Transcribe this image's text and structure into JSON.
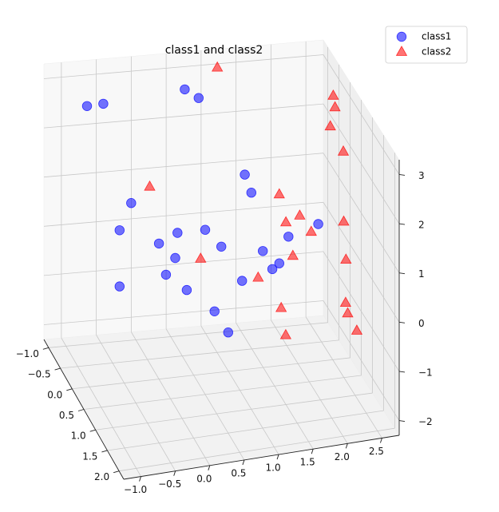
{
  "chart_data": {
    "type": "scatter",
    "projection": "3d",
    "title": "class1 and class2",
    "xlabel": "",
    "ylabel": "",
    "zlabel": "",
    "xlim": [
      -1.25,
      2.75
    ],
    "ylim": [
      -1.2,
      2.2
    ],
    "zlim": [
      -2.3,
      3.3
    ],
    "x_ticks": [
      "−1.0",
      "−0.5",
      "0.0",
      "0.5",
      "1.0",
      "1.5",
      "2.0",
      "2.5"
    ],
    "y_ticks": [
      "−1.0",
      "−0.5",
      "0.0",
      "0.5",
      "1.0",
      "1.5",
      "2.0"
    ],
    "z_ticks": [
      "−2",
      "−1",
      "0",
      "1",
      "2",
      "3"
    ],
    "grid": true,
    "legend_position": "top-right",
    "series": [
      {
        "name": "class1",
        "marker": "circle",
        "color": "#0000ff",
        "points": [
          [
            0.9,
            -1.0,
            2.5
          ],
          [
            0.7,
            -1.0,
            2.7
          ],
          [
            -0.6,
            -0.6,
            2.9
          ],
          [
            -0.8,
            -0.7,
            2.8
          ],
          [
            -0.6,
            0.1,
            0.9
          ],
          [
            0.2,
            0.2,
            0.8
          ],
          [
            -0.4,
            1.5,
            1.1
          ],
          [
            1.0,
            1.0,
            2.1
          ],
          [
            -0.5,
            0.3,
            1.6
          ],
          [
            0.4,
            1.8,
            0.0
          ],
          [
            0.8,
            1.2,
            0.5
          ],
          [
            0.1,
            -0.3,
            0.2
          ],
          [
            -0.3,
            1.6,
            1.5
          ],
          [
            -0.5,
            -0.2,
            -0.5
          ],
          [
            0.3,
            0.3,
            -0.3
          ],
          [
            1.5,
            0.4,
            0.0
          ],
          [
            0.4,
            0.8,
            1.3
          ],
          [
            0.6,
            0.9,
            1.0
          ],
          [
            1.2,
            0.9,
            0.8
          ],
          [
            1.6,
            0.4,
            0.1
          ],
          [
            1.7,
            0.5,
            0.7
          ],
          [
            0.7,
            0.3,
            -0.8
          ],
          [
            2.0,
            0.9,
            1.2
          ],
          [
            1.3,
            -0.2,
            1.5
          ]
        ]
      },
      {
        "name": "class2",
        "marker": "triangle",
        "color": "#ff0000",
        "points": [
          [
            1.2,
            -1.1,
            3.0
          ],
          [
            2.2,
            1.4,
            3.0
          ],
          [
            2.5,
            0.1,
            2.9
          ],
          [
            2.4,
            0.2,
            2.6
          ],
          [
            2.7,
            -0.6,
            2.6
          ],
          [
            -0.2,
            0.2,
            1.8
          ],
          [
            1.6,
            0.4,
            1.5
          ],
          [
            1.5,
            1.0,
            1.4
          ],
          [
            1.7,
            1.0,
            1.5
          ],
          [
            1.8,
            1.2,
            1.3
          ],
          [
            2.4,
            0.8,
            1.1
          ],
          [
            1.0,
            1.3,
            0.6
          ],
          [
            2.4,
            0.9,
            0.4
          ],
          [
            0.5,
            0.3,
            0.3
          ],
          [
            1.3,
            1.4,
            0.0
          ],
          [
            1.6,
            1.0,
            0.7
          ],
          [
            2.2,
            1.5,
            0.0
          ],
          [
            2.1,
            1.9,
            0.1
          ],
          [
            2.2,
            2.0,
            -0.2
          ],
          [
            1.3,
            1.6,
            -0.4
          ]
        ]
      }
    ]
  }
}
